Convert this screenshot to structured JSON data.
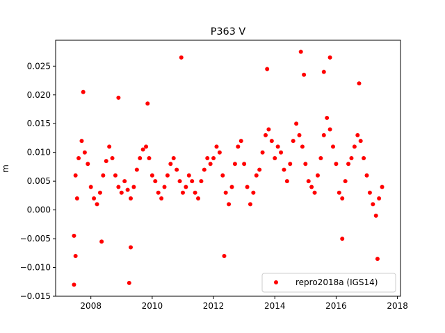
{
  "chart_data": {
    "type": "scatter",
    "title": "P363 V",
    "xlabel": "",
    "ylabel": "m",
    "xlim": [
      2006.85,
      2018.1
    ],
    "ylim": [
      -0.015,
      0.0295
    ],
    "xticks": [
      2008,
      2010,
      2012,
      2014,
      2016,
      2018
    ],
    "xtick_labels": [
      "2008",
      "2010",
      "2012",
      "2014",
      "2016",
      "2018"
    ],
    "yticks": [
      -0.015,
      -0.01,
      -0.005,
      0.0,
      0.005,
      0.01,
      0.015,
      0.02,
      0.025
    ],
    "ytick_labels": [
      "−0.015",
      "−0.010",
      "−0.005",
      "0.000",
      "0.005",
      "0.010",
      "0.015",
      "0.020",
      "0.025"
    ],
    "grid": false,
    "legend_position": "lower-right",
    "series": [
      {
        "name": "repro2018a (IGS14)",
        "color": "#ff0000",
        "marker": "circle",
        "x": [
          2007.45,
          2007.5,
          2007.55,
          2007.6,
          2007.7,
          2007.8,
          2007.9,
          2008.0,
          2008.1,
          2008.2,
          2008.3,
          2008.4,
          2008.5,
          2008.6,
          2008.7,
          2008.8,
          2008.9,
          2009.0,
          2009.1,
          2009.2,
          2009.3,
          2009.4,
          2009.5,
          2009.6,
          2009.7,
          2009.8,
          2009.9,
          2010.0,
          2010.1,
          2010.2,
          2010.3,
          2010.4,
          2010.5,
          2010.6,
          2010.7,
          2010.8,
          2010.9,
          2011.0,
          2011.1,
          2011.2,
          2011.3,
          2011.4,
          2011.5,
          2011.6,
          2011.7,
          2011.8,
          2011.9,
          2012.0,
          2012.1,
          2012.2,
          2012.3,
          2012.4,
          2012.5,
          2012.6,
          2012.7,
          2012.8,
          2012.9,
          2013.0,
          2013.1,
          2013.2,
          2013.3,
          2013.4,
          2013.5,
          2013.6,
          2013.7,
          2013.8,
          2013.9,
          2014.0,
          2014.1,
          2014.2,
          2014.3,
          2014.4,
          2014.5,
          2014.6,
          2014.7,
          2014.8,
          2014.9,
          2015.0,
          2015.1,
          2015.2,
          2015.3,
          2015.4,
          2015.5,
          2015.6,
          2015.7,
          2015.8,
          2015.9,
          2016.0,
          2016.1,
          2016.2,
          2016.3,
          2016.4,
          2016.5,
          2016.6,
          2016.7,
          2016.8,
          2016.9,
          2017.0,
          2017.1,
          2017.2,
          2017.3,
          2017.4,
          2017.5,
          2007.45,
          2007.75,
          2008.35,
          2008.9,
          2009.25,
          2010.95,
          2007.5,
          2009.3,
          2014.85,
          2015.8,
          2015.6,
          2013.75,
          2012.35,
          2017.35,
          2016.2,
          2014.95,
          2016.75,
          2009.85
        ],
        "y": [
          -0.0045,
          0.006,
          0.002,
          0.009,
          0.012,
          0.01,
          0.008,
          0.004,
          0.002,
          0.001,
          0.003,
          0.006,
          0.0085,
          0.011,
          0.009,
          0.006,
          0.004,
          0.003,
          0.005,
          0.0035,
          0.002,
          0.004,
          0.007,
          0.009,
          0.0105,
          0.011,
          0.009,
          0.006,
          0.005,
          0.003,
          0.002,
          0.004,
          0.006,
          0.008,
          0.009,
          0.007,
          0.005,
          0.003,
          0.004,
          0.006,
          0.005,
          0.003,
          0.002,
          0.005,
          0.007,
          0.009,
          0.008,
          0.009,
          0.011,
          0.01,
          0.006,
          0.003,
          0.001,
          0.004,
          0.008,
          0.011,
          0.012,
          0.008,
          0.004,
          0.001,
          0.003,
          0.006,
          0.007,
          0.01,
          0.013,
          0.014,
          0.012,
          0.009,
          0.011,
          0.01,
          0.007,
          0.005,
          0.008,
          0.012,
          0.015,
          0.013,
          0.011,
          0.008,
          0.005,
          0.004,
          0.003,
          0.006,
          0.009,
          0.013,
          0.016,
          0.014,
          0.011,
          0.008,
          0.003,
          0.002,
          0.005,
          0.008,
          0.009,
          0.011,
          0.013,
          0.012,
          0.009,
          0.006,
          0.003,
          0.001,
          -0.001,
          0.002,
          0.004,
          -0.013,
          0.0205,
          -0.0055,
          0.0195,
          -0.0127,
          0.0265,
          -0.008,
          -0.0065,
          0.0275,
          0.0265,
          0.024,
          0.0245,
          -0.008,
          -0.0085,
          -0.005,
          0.0235,
          0.022,
          0.0185
        ]
      }
    ]
  }
}
